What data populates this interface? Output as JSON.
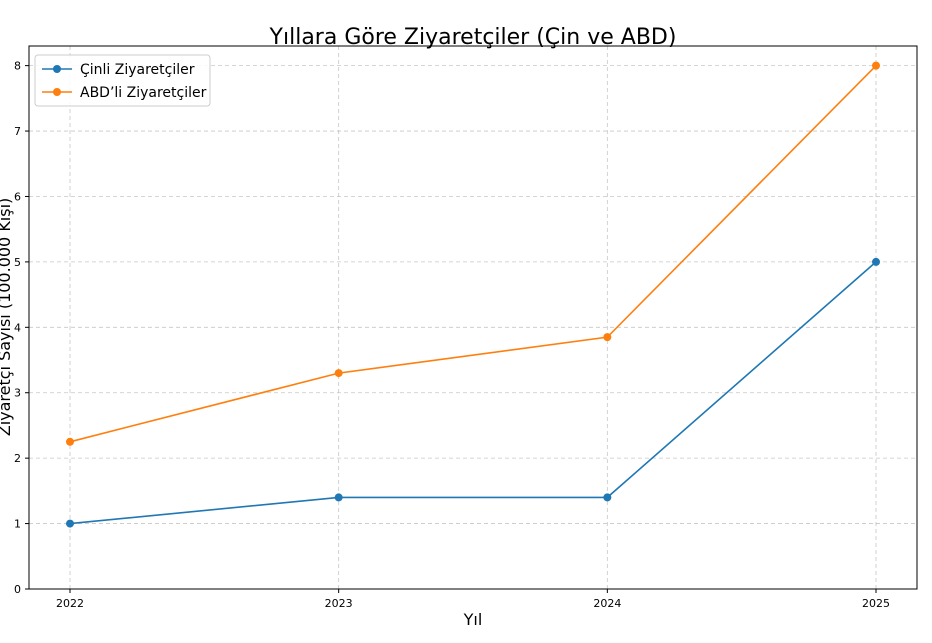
{
  "chart_data": {
    "type": "line",
    "title": "Yıllara Göre Ziyaretçiler (Çin ve ABD)",
    "xlabel": "Yıl",
    "ylabel": "Ziyaretçi Sayısı (100.000 Kişi)",
    "x": [
      "2022",
      "2023",
      "2024",
      "2025"
    ],
    "yticks": [
      "0",
      "1",
      "2",
      "3",
      "4",
      "5",
      "6",
      "7",
      "8"
    ],
    "ylim": [
      0,
      8.3
    ],
    "grid": true,
    "legend_position": "top-left",
    "series": [
      {
        "name": "Çinli Ziyaretçiler",
        "values": [
          1.0,
          1.4,
          1.4,
          5.0
        ],
        "color": "#1f77b4"
      },
      {
        "name": "ABD’li Ziyaretçiler",
        "values": [
          2.25,
          3.3,
          3.85,
          8.0
        ],
        "color": "#ff7f0e"
      }
    ]
  }
}
